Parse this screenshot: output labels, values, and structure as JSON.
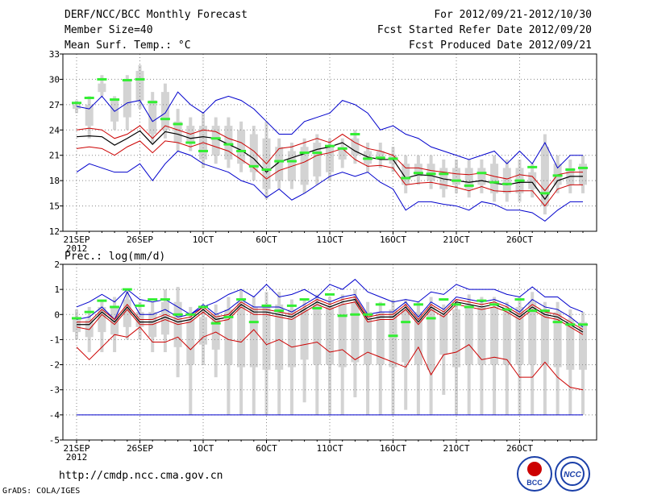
{
  "header": {
    "left": [
      "DERF/NCC/BCC Monthly Forecast",
      "Member Size=40",
      "Mean Surf. Temp.: °C"
    ],
    "right": [
      "For 2012/09/21-2012/10/30",
      "Fcst Started Refer Date 2012/09/20",
      "Fcst Produced Date 2012/09/21"
    ]
  },
  "footer": {
    "url": "http://cmdp.ncc.cma.gov.cn",
    "credit": "GrADS: COLA/IGES"
  },
  "logos": [
    {
      "icon": "bcc-logo-icon",
      "label": "BCC",
      "color": "#1a3fa8"
    },
    {
      "icon": "ncc-logo-icon",
      "label": "NCC",
      "color": "#1a3fa8"
    }
  ],
  "colors": {
    "max": "#0000cc",
    "quartile": "#cc0000",
    "median": "#000000",
    "box": "#d3d3d3",
    "obs": "#33ee33"
  },
  "chart_data": [
    {
      "type": "box",
      "title": "Mean Surf. Temp.: °C",
      "ylim": [
        12,
        33
      ],
      "yticks": [
        "12",
        "15",
        "18",
        "21",
        "24",
        "27",
        "30",
        "33"
      ],
      "xticks": [
        {
          "day": 1,
          "label": "21SEP"
        },
        {
          "day": 6,
          "label": "26SEP"
        },
        {
          "day": 11,
          "label": "1OCT"
        },
        {
          "day": 16,
          "label": "6OCT"
        },
        {
          "day": 21,
          "label": "11OCT"
        },
        {
          "day": 26,
          "label": "16OCT"
        },
        {
          "day": 31,
          "label": "21OCT"
        },
        {
          "day": 36,
          "label": "26OCT"
        }
      ],
      "year_label": "2012",
      "max": [
        19,
        20,
        19.5,
        19,
        19,
        20,
        18,
        20,
        21.5,
        21,
        20,
        19.5,
        19,
        18,
        17.5,
        16,
        17,
        15.7,
        16.5,
        17.5,
        18.5,
        19,
        18.5,
        19,
        17.8,
        17,
        14.5,
        15.5,
        15.5,
        15.2,
        15,
        14.5,
        15.5,
        15.2,
        14.5,
        14.5,
        14.2,
        13.2,
        14.5,
        15.5,
        15.5
      ],
      "high": [
        26.8,
        26.5,
        28,
        26.2,
        27.2,
        27.5,
        25,
        26,
        28.5,
        27,
        26,
        27.5,
        28,
        27.5,
        26.5,
        25,
        23.5,
        23.5,
        25,
        25.5,
        26,
        27.5,
        27,
        26,
        24,
        24.5,
        23.5,
        23,
        22,
        21.5,
        21,
        20.5,
        21,
        21.5,
        20,
        21.5,
        20,
        22.5,
        19.5,
        21,
        21
      ],
      "q3": [
        24,
        24.2,
        24,
        23,
        23.5,
        24.5,
        23,
        24.5,
        24,
        23.5,
        24,
        23.8,
        23,
        22.5,
        21.5,
        20,
        21.8,
        22,
        22.5,
        23,
        22.5,
        23.5,
        22.5,
        21.8,
        21.5,
        21,
        19.5,
        19.5,
        19.2,
        19,
        18.8,
        18.7,
        18.9,
        18.5,
        18.2,
        18.7,
        18.5,
        16.8,
        18.7,
        19,
        19
      ],
      "median": [
        23.2,
        23.3,
        23.2,
        22.2,
        23,
        23.9,
        22.3,
        23.8,
        23.5,
        23,
        23.2,
        23,
        22.3,
        21.6,
        20.6,
        19,
        20.2,
        20.7,
        21.2,
        21.7,
        22,
        22.5,
        21.5,
        20.8,
        20.5,
        20.5,
        18.3,
        18.7,
        18.6,
        18.2,
        18,
        17.8,
        18,
        17.7,
        17.5,
        17.8,
        17.8,
        15.8,
        18,
        18.5,
        18.5
      ],
      "q1": [
        21.8,
        22,
        21.8,
        21,
        22,
        22.7,
        21.3,
        22.7,
        22.5,
        22,
        22.5,
        22,
        21.5,
        20.5,
        19.5,
        18.2,
        19.2,
        19.7,
        20.2,
        21,
        21.3,
        21.8,
        20.5,
        19.7,
        19.8,
        19.5,
        17.5,
        17.7,
        17.8,
        17.5,
        17.2,
        16.8,
        17.3,
        16.8,
        16.7,
        16.8,
        16.8,
        15,
        17,
        17.5,
        17.5
      ],
      "box_top": [
        27.5,
        28,
        30.5,
        28,
        30.5,
        31.7,
        28.5,
        29.5,
        26.5,
        25.5,
        26,
        25.5,
        25.5,
        25,
        24.5,
        25,
        23,
        22.5,
        23,
        23.5,
        23,
        23,
        24,
        22.5,
        22.5,
        22,
        21,
        21,
        21,
        20.5,
        20.5,
        20.5,
        20.5,
        21,
        20.5,
        20.5,
        20,
        23.5,
        21,
        20.5,
        21
      ],
      "box_bottom": [
        26,
        23,
        28,
        24,
        24,
        26.5,
        22.5,
        23,
        21.5,
        21.5,
        19.5,
        20,
        19.5,
        19,
        18,
        15.8,
        17,
        17,
        16.5,
        17.5,
        18,
        19.5,
        20,
        19,
        19.5,
        19,
        16.5,
        17.5,
        17,
        16,
        16.5,
        16,
        16.5,
        15.5,
        15.5,
        15.5,
        16,
        14,
        16.5,
        16.5,
        16.5
      ],
      "box_q3": [
        27,
        27,
        29.5,
        27.5,
        30,
        31,
        27.5,
        28.5,
        25,
        24.5,
        24.5,
        24.5,
        24.5,
        24,
        23.5,
        23,
        22,
        21.5,
        22,
        22.5,
        22,
        22,
        23,
        21.5,
        21.5,
        21,
        20,
        20,
        20,
        19.5,
        19.5,
        19.5,
        19.5,
        20,
        19.5,
        19.5,
        19,
        22,
        20,
        19.5,
        20
      ],
      "box_q1": [
        26.5,
        24.5,
        28.5,
        25,
        25.5,
        27.5,
        23.5,
        24,
        22.5,
        22.5,
        20.5,
        21,
        20.5,
        20,
        19,
        17,
        18,
        18,
        17.5,
        18.5,
        19,
        20.5,
        21,
        20,
        20.5,
        20,
        17.5,
        18.5,
        18,
        17,
        17.5,
        17,
        17.5,
        16.5,
        16.5,
        16.5,
        17,
        15,
        17.5,
        17.5,
        17.5
      ],
      "obs": [
        27.2,
        27.8,
        30,
        27.6,
        29.9,
        30,
        27.3,
        25.3,
        24.7,
        22.5,
        21.5,
        23,
        22.3,
        21.5,
        19.7,
        19.3,
        20.3,
        20.3,
        21.3,
        21.3,
        22.1,
        21.8,
        23.5,
        20.6,
        20.7,
        20.6,
        18.3,
        18.9,
        18.8,
        18.8,
        18,
        17.4,
        18.9,
        17.8,
        17.6,
        18,
        19.6,
        16.5,
        18.6,
        19.3,
        19.5
      ]
    },
    {
      "type": "box",
      "title": "Prec.: log(mm/d)",
      "ylim": [
        -5,
        2
      ],
      "yticks": [
        "-5",
        "-4",
        "-3",
        "-2",
        "-1",
        "0",
        "1",
        "2"
      ],
      "xticks": [
        {
          "day": 1,
          "label": "21SEP"
        },
        {
          "day": 6,
          "label": "26SEP"
        },
        {
          "day": 11,
          "label": "1OCT"
        },
        {
          "day": 16,
          "label": "6OCT"
        },
        {
          "day": 21,
          "label": "11OCT"
        },
        {
          "day": 26,
          "label": "16OCT"
        },
        {
          "day": 31,
          "label": "21OCT"
        },
        {
          "day": 36,
          "label": "26OCT"
        }
      ],
      "year_label": "2012",
      "max": [
        0.3,
        0.5,
        0.8,
        0.5,
        1,
        0.6,
        0.5,
        0.6,
        0.3,
        0,
        0.3,
        0.5,
        0.8,
        1,
        0.7,
        1.2,
        0.7,
        0.8,
        1,
        0.7,
        1.2,
        1,
        1.4,
        0.9,
        0.7,
        0.5,
        0.6,
        0.5,
        0.9,
        0.8,
        1.2,
        1,
        1,
        1,
        0.8,
        0.7,
        1.1,
        0.7,
        0.7,
        0.3,
        0.1
      ],
      "high": [
        -0.2,
        -0.1,
        0.3,
        -0.2,
        0.9,
        0,
        0,
        0.2,
        -0.1,
        0,
        0.4,
        0,
        0.2,
        0.6,
        0.3,
        0.3,
        0.3,
        0.1,
        0.4,
        0.7,
        0.5,
        0.7,
        0.8,
        0,
        0.1,
        0.1,
        0.5,
        -0.1,
        0.5,
        0.2,
        0.7,
        0.6,
        0.5,
        0.6,
        0.4,
        0.1,
        0.6,
        0.3,
        0.2,
        -0.1,
        -0.5
      ],
      "q3": [
        -0.3,
        -0.3,
        0.2,
        -0.2,
        0.4,
        -0.2,
        -0.2,
        0,
        -0.2,
        -0.1,
        0.3,
        -0.1,
        0,
        0.5,
        0.2,
        0.2,
        0.1,
        0,
        0.3,
        0.6,
        0.4,
        0.6,
        0.7,
        -0.1,
        0,
        0,
        0.4,
        -0.2,
        0.4,
        0.1,
        0.6,
        0.5,
        0.4,
        0.5,
        0.3,
        0,
        0.4,
        0.1,
        0,
        -0.3,
        -0.6
      ],
      "median": [
        -0.4,
        -0.4,
        0.1,
        -0.3,
        0.3,
        -0.3,
        -0.3,
        -0.1,
        -0.3,
        -0.2,
        0.2,
        -0.2,
        -0.1,
        0.4,
        0.1,
        0.1,
        0,
        -0.1,
        0.2,
        0.5,
        0.3,
        0.5,
        0.6,
        -0.2,
        -0.1,
        -0.1,
        0.3,
        -0.3,
        0.3,
        0,
        0.5,
        0.4,
        0.3,
        0.4,
        0.2,
        -0.1,
        0.3,
        0,
        -0.1,
        -0.4,
        -0.7
      ],
      "q1": [
        -0.5,
        -0.6,
        0,
        -0.4,
        0.2,
        -0.4,
        -0.4,
        -0.2,
        -0.4,
        -0.3,
        0.1,
        -0.3,
        -0.2,
        0.3,
        0,
        0,
        -0.1,
        -0.2,
        0.1,
        0.4,
        0.2,
        0.4,
        0.5,
        -0.3,
        -0.2,
        -0.2,
        0.2,
        -0.4,
        0.2,
        -0.1,
        0.4,
        0.3,
        0.2,
        0.3,
        0.1,
        -0.2,
        0.2,
        -0.1,
        -0.2,
        -0.5,
        -0.8
      ],
      "min": [
        -1.3,
        -1.8,
        -1.3,
        -0.8,
        -0.9,
        -0.5,
        -1.1,
        -1.1,
        -0.9,
        -1.4,
        -0.9,
        -0.7,
        -1,
        -1.1,
        -0.6,
        -1.2,
        -1,
        -1.3,
        -1.2,
        -1.1,
        -1.5,
        -1.4,
        -1.8,
        -1.5,
        -1.7,
        -1.9,
        -2.1,
        -1.3,
        -2.4,
        -1.6,
        -1.5,
        -1.2,
        -1.8,
        -1.7,
        -1.8,
        -2.5,
        -2.5,
        -1.9,
        -2.5,
        -2.9,
        -3.0
      ],
      "box_top": [
        0.2,
        0.3,
        0.6,
        0.7,
        1,
        0.5,
        0.5,
        1,
        1.1,
        0.3,
        0.3,
        0.4,
        0.7,
        1,
        0.7,
        0.9,
        0.9,
        0.6,
        0.6,
        0.8,
        0.7,
        0.8,
        1,
        0.5,
        0.5,
        0.6,
        0.6,
        0.5,
        0.7,
        0.4,
        0.6,
        0.8,
        0.7,
        0.7,
        0.5,
        0.7,
        0.9,
        0.5,
        0.5,
        0.2,
        0.1
      ],
      "box_bottom": [
        -1,
        -1.5,
        -1.5,
        -1.5,
        -1,
        -1,
        -1.5,
        -1.5,
        -2.5,
        -4,
        -2,
        -2.5,
        -4,
        -4,
        -4,
        -4,
        -4,
        -4,
        -3.5,
        -4,
        -4,
        -4,
        -3.3,
        -4,
        -4,
        -4,
        -3.8,
        -4,
        -4,
        -3.2,
        -4,
        -4,
        -4,
        -4,
        -4,
        -4,
        -4,
        -4,
        -4,
        -4,
        -4
      ],
      "box_q3": [
        -0.2,
        -0.2,
        0.3,
        0.3,
        0.6,
        0.1,
        0.1,
        0.5,
        0.5,
        -0.2,
        -0.1,
        0,
        0.2,
        0.5,
        0.3,
        0.4,
        0.4,
        0.2,
        0.2,
        0.4,
        0.3,
        0.4,
        0.5,
        0.1,
        0.1,
        0.2,
        0.2,
        0.1,
        0.3,
        0,
        0.2,
        0.4,
        0.3,
        0.3,
        0.1,
        0.3,
        0.5,
        0.1,
        0.1,
        -0.2,
        -0.3
      ],
      "box_q1": [
        -0.7,
        -0.9,
        -0.7,
        -0.8,
        -0.5,
        -0.5,
        -0.9,
        -0.8,
        -1.3,
        -2,
        -1.2,
        -1.4,
        -2,
        -2.1,
        -2.1,
        -2.2,
        -2.2,
        -2.1,
        -1.8,
        -2,
        -2,
        -2.1,
        -1.9,
        -2,
        -2,
        -2.1,
        -1.9,
        -2,
        -2.2,
        -1.6,
        -2.1,
        -2,
        -2,
        -2,
        -2,
        -2,
        -2,
        -2,
        -2.1,
        -2.2,
        -2.2
      ],
      "obs": [
        -0.15,
        0.1,
        0.55,
        0.3,
        1,
        0.35,
        0.6,
        0.6,
        0,
        0,
        0.3,
        -0.35,
        -0.1,
        0.6,
        -0.3,
        0.35,
        0.15,
        0.35,
        0.6,
        0.25,
        0.8,
        -0.05,
        0,
        0,
        0.4,
        -0.85,
        -0.3,
        0.4,
        -0.15,
        0.6,
        0.4,
        0.3,
        0.55,
        0.4,
        0.2,
        0.6,
        0.15,
        0.15,
        -0.3,
        -0.4,
        -0.4
      ],
      "baseline": -4
    }
  ]
}
